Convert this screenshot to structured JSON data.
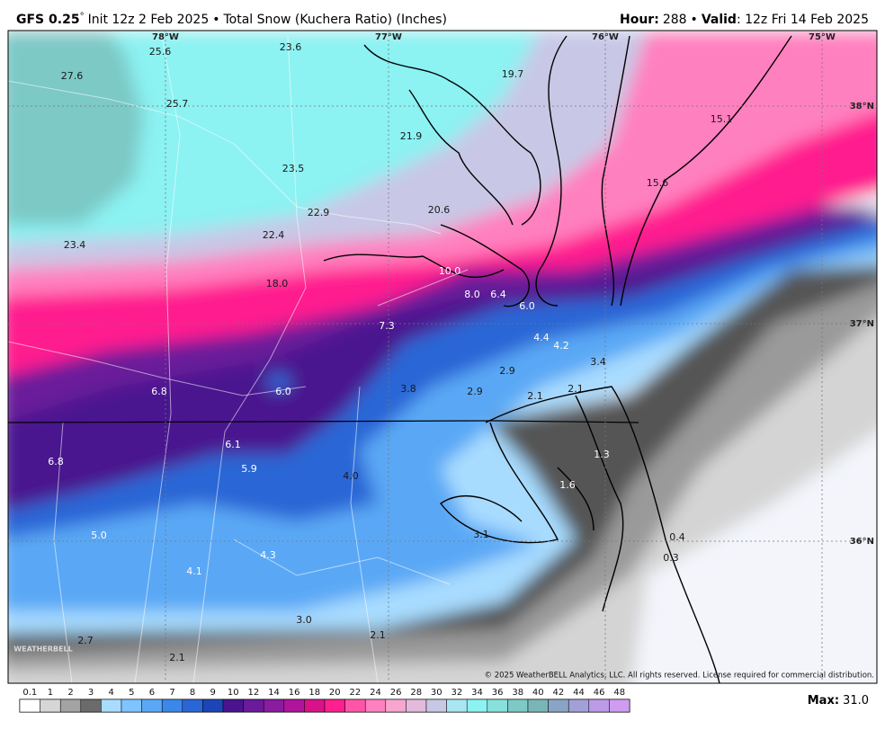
{
  "header": {
    "model": "GFS 0.25",
    "degree": "°",
    "init": "Init 12z 2 Feb 2025",
    "separator": "•",
    "product": "Total Snow (Kuchera Ratio) (Inches)",
    "hour_label": "Hour:",
    "hour": "288",
    "valid_label": "Valid",
    "valid": ": 12z Fri 14 Feb 2025"
  },
  "map": {
    "longitudes": [
      "78°W",
      "77°W",
      "76°W",
      "75°W"
    ],
    "latitudes": [
      "38°N",
      "37°N",
      "36°N"
    ],
    "labels": [
      "25.6",
      "23.6",
      "27.6",
      "25.7",
      "19.7",
      "15.1",
      "21.9",
      "23.5",
      "15.6",
      "22.9",
      "20.6",
      "23.4",
      "22.4",
      "18.0",
      "10.0",
      "8.0",
      "6.4",
      "6.0",
      "7.3",
      "4.4",
      "4.2",
      "3.4",
      "2.9",
      "6.8",
      "6.0",
      "3.8",
      "2.9",
      "2.1",
      "2.1",
      "6.1",
      "1.3",
      "6.8",
      "5.9",
      "4.0",
      "1.6",
      "5.0",
      "3.1",
      "0.4",
      "4.3",
      "0.3",
      "4.1",
      "3.0",
      "2.1",
      "2.7",
      "2.1"
    ],
    "watermark": "WEATHERBELL",
    "copyright": "© 2025 WeatherBELL Analytics, LLC. All rights reserved. License required for commercial distribution."
  },
  "colorbar": {
    "labels": [
      "0.1",
      "1",
      "2",
      "3",
      "4",
      "5",
      "6",
      "7",
      "8",
      "9",
      "10",
      "12",
      "14",
      "16",
      "18",
      "20",
      "22",
      "24",
      "26",
      "28",
      "30",
      "32",
      "34",
      "36",
      "38",
      "40",
      "42",
      "44",
      "46",
      "48"
    ],
    "colors": [
      "#ffffff",
      "#d6d6d6",
      "#a3a3a3",
      "#6b6b6b",
      "#a8dcff",
      "#7fc4ff",
      "#5aa8f5",
      "#3b87ea",
      "#2a66d6",
      "#1d45b8",
      "#4a148f",
      "#6a1a9a",
      "#8a1ca0",
      "#b0149a",
      "#d9128a",
      "#ff1f8f",
      "#ff55a8",
      "#ff80bf",
      "#f6a6cf",
      "#e3badb",
      "#c8c8e6",
      "#a8e6f0",
      "#8cf2f2",
      "#88e0dc",
      "#7cc9c6",
      "#79b6b8",
      "#8aa4c6",
      "#a39fd9",
      "#bb9ae6",
      "#d09cf0"
    ],
    "max_label": "Max:",
    "max": "31.0"
  }
}
